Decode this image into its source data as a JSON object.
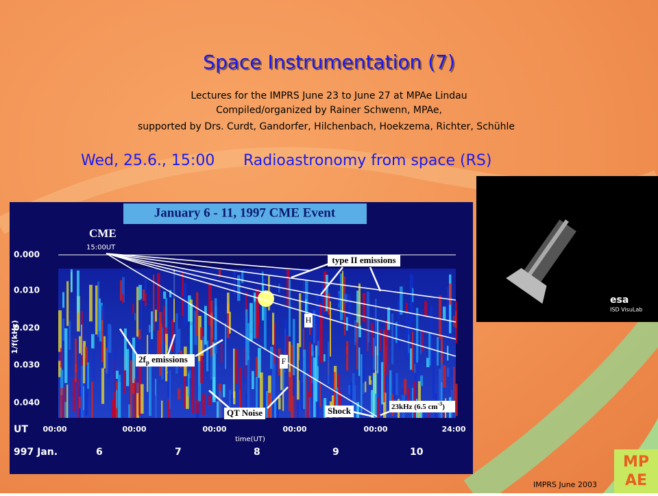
{
  "header": {
    "title": "Space Instrumentation (7)",
    "lines": [
      "Lectures for the IMPRS June 23 to June 27 at MPAe Lindau",
      "Compiled/organized by Rainer Schwenn, MPAe,",
      "supported by Drs. Curdt, Gandorfer, Hilchenbach, Hoekzema, Richter, Schühle"
    ]
  },
  "session": {
    "date": "Wed, 25.6., 15:00",
    "topic": "Radioastronomy from space (RS)"
  },
  "figure": {
    "title": "January 6 - 11, 1997 CME Event",
    "cme": "CME",
    "cme_time": "15:00UT",
    "y_label": "1/f(kHz)",
    "y_ticks": [
      "0.000",
      "0.010",
      "0.020",
      "0.030",
      "0.040"
    ],
    "annotations": {
      "type2": "type II emissions",
      "twofp": {
        "base": "2f",
        "sub": "p",
        "rest": " emissions"
      },
      "qt": "QT Noise",
      "shock": "Shock",
      "freq": {
        "base": "23kHz (6.5 cm",
        "sup": "-3",
        "rest": ")"
      },
      "h": "H",
      "f": "F"
    },
    "x_unit": "UT",
    "x_ticks": [
      "00:00",
      "00:00",
      "00:00",
      "00:00",
      "00:00",
      "24:00"
    ],
    "x_label": "time(UT)",
    "month": "997 Jan.",
    "days": [
      "6",
      "7",
      "8",
      "9",
      "10"
    ]
  },
  "inset": {
    "logo": "esa",
    "credit": "ISD VisuLab"
  },
  "footer": {
    "text": "IMPRS June 2003",
    "logo_top": "MP",
    "logo_bottom": "AE"
  }
}
